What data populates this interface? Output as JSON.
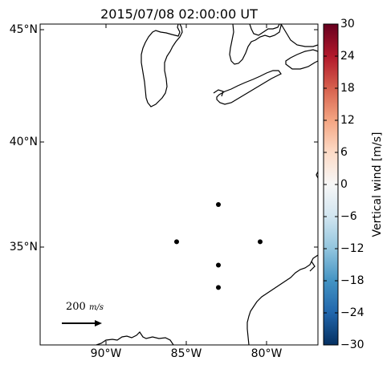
{
  "title": "2015/07/08 02:00:00 UT",
  "map": {
    "lat_ticks": [
      "45°N",
      "40°N",
      "35°N"
    ],
    "lon_ticks": [
      "90°W",
      "85°W",
      "80°W"
    ],
    "lat_range": [
      30.5,
      45.2
    ],
    "lon_range": [
      -94.0,
      -77.0
    ]
  },
  "stations": [
    {
      "lon": -83.0,
      "lat": 37.0
    },
    {
      "lon": -85.6,
      "lat": 35.25
    },
    {
      "lon": -80.4,
      "lat": 35.25
    },
    {
      "lon": -83.0,
      "lat": 34.15
    },
    {
      "lon": -83.0,
      "lat": 33.1
    }
  ],
  "reference_arrow": {
    "value_text": "200",
    "unit_text": "m/s"
  },
  "colorbar": {
    "label": "Vertical wind [m/s]",
    "ticks": [
      "30",
      "24",
      "18",
      "12",
      "6",
      "0",
      "−6",
      "−12",
      "−18",
      "−24",
      "−30"
    ],
    "min": -30,
    "max": 30,
    "colormap": [
      "#053061",
      "#2166ac",
      "#4393c3",
      "#92c5de",
      "#d1e5f0",
      "#f7f7f7",
      "#fddbc7",
      "#f4a582",
      "#d6604d",
      "#b2182b",
      "#67001f"
    ]
  },
  "colors": {
    "coastline": "#000000",
    "station": "#000000",
    "frame": "#000000"
  }
}
